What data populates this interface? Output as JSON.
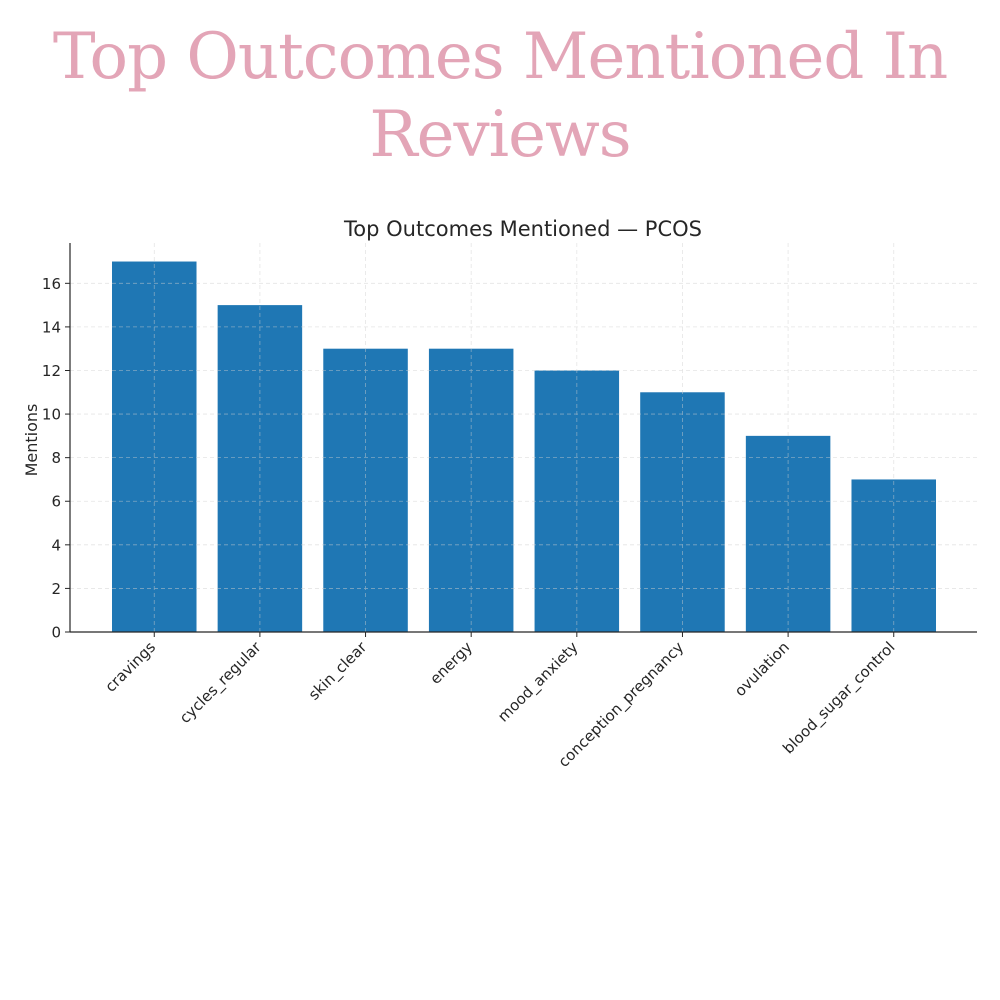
{
  "page": {
    "heading_line1": "Top Outcomes Mentioned In",
    "heading_line2": "Reviews",
    "heading_color": "#e3a5b7"
  },
  "chart_data": {
    "type": "bar",
    "title": "Top Outcomes Mentioned — PCOS",
    "xlabel": "",
    "ylabel": "Mentions",
    "categories": [
      "cravings",
      "cycles_regular",
      "skin_clear",
      "energy",
      "mood_anxiety",
      "conception_pregnancy",
      "ovulation",
      "blood_sugar_control"
    ],
    "values": [
      17,
      15,
      13,
      13,
      12,
      11,
      9,
      7
    ],
    "ylim": [
      0,
      17.85
    ],
    "yticks": [
      0,
      2,
      4,
      6,
      8,
      10,
      12,
      14,
      16
    ],
    "bar_color": "#1f77b4",
    "grid": true
  }
}
